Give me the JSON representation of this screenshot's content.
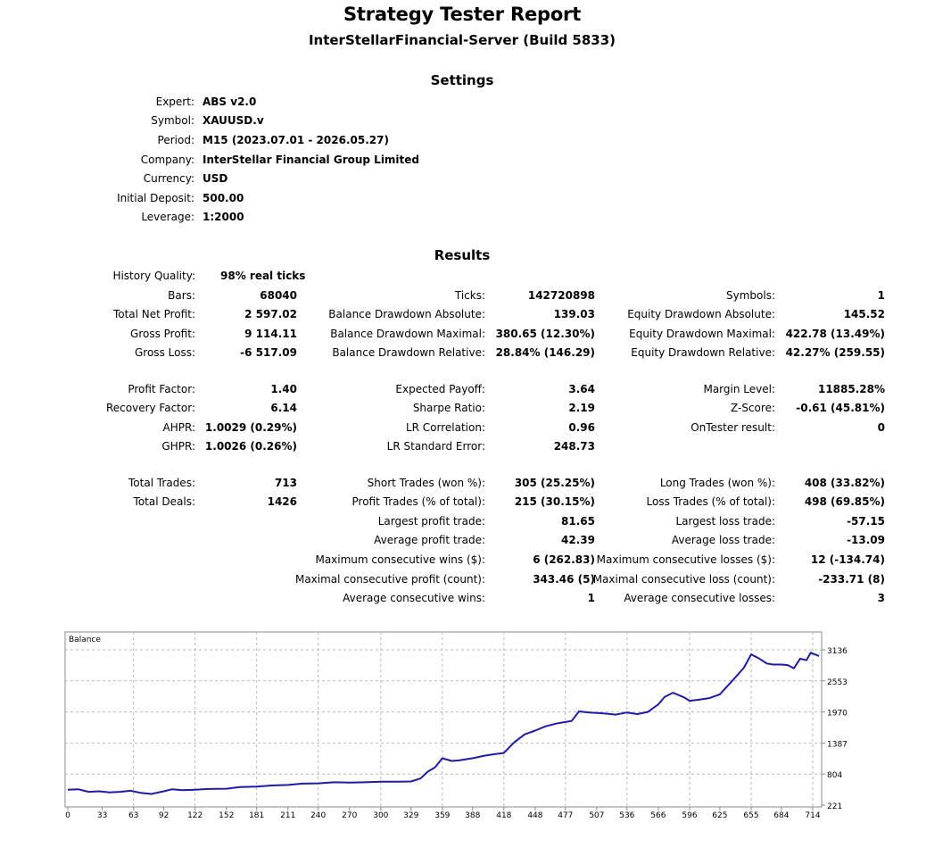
{
  "header": {
    "title": "Strategy Tester Report",
    "server": "InterStellarFinancial-Server (Build 5833)"
  },
  "settings": {
    "heading": "Settings",
    "rows": [
      {
        "label": "Expert:",
        "value": "ABS v2.0"
      },
      {
        "label": "Symbol:",
        "value": "XAUUSD.v"
      },
      {
        "label": "Period:",
        "value": "M15 (2023.07.01 - 2026.05.27)"
      },
      {
        "label": "Company:",
        "value": "InterStellar Financial Group Limited"
      },
      {
        "label": "Currency:",
        "value": "USD"
      },
      {
        "label": "Initial Deposit:",
        "value": "500.00"
      },
      {
        "label": "Leverage:",
        "value": "1:2000"
      }
    ]
  },
  "results": {
    "heading": "Results",
    "history_quality": {
      "label": "History Quality:",
      "value": "98% real ticks"
    },
    "rows": [
      [
        {
          "label": "Bars:",
          "value": "68040"
        },
        {
          "label": "Ticks:",
          "value": "142720898"
        },
        {
          "label": "Symbols:",
          "value": "1"
        }
      ],
      [
        {
          "label": "Total Net Profit:",
          "value": "2 597.02"
        },
        {
          "label": "Balance Drawdown Absolute:",
          "value": "139.03"
        },
        {
          "label": "Equity Drawdown Absolute:",
          "value": "145.52"
        }
      ],
      [
        {
          "label": "Gross Profit:",
          "value": "9 114.11"
        },
        {
          "label": "Balance Drawdown Maximal:",
          "value": "380.65 (12.30%)"
        },
        {
          "label": "Equity Drawdown Maximal:",
          "value": "422.78 (13.49%)"
        }
      ],
      [
        {
          "label": "Gross Loss:",
          "value": "-6 517.09"
        },
        {
          "label": "Balance Drawdown Relative:",
          "value": "28.84% (146.29)"
        },
        {
          "label": "Equity Drawdown Relative:",
          "value": "42.27% (259.55)"
        }
      ],
      [
        {
          "label": "Profit Factor:",
          "value": "1.40"
        },
        {
          "label": "Expected Payoff:",
          "value": "3.64"
        },
        {
          "label": "Margin Level:",
          "value": "11885.28%"
        }
      ],
      [
        {
          "label": "Recovery Factor:",
          "value": "6.14"
        },
        {
          "label": "Sharpe Ratio:",
          "value": "2.19"
        },
        {
          "label": "Z-Score:",
          "value": "-0.61 (45.81%)"
        }
      ],
      [
        {
          "label": "AHPR:",
          "value": "1.0029 (0.29%)"
        },
        {
          "label": "LR Correlation:",
          "value": "0.96"
        },
        {
          "label": "OnTester result:",
          "value": "0"
        }
      ],
      [
        {
          "label": "GHPR:",
          "value": "1.0026 (0.26%)"
        },
        {
          "label": "LR Standard Error:",
          "value": "248.73"
        },
        null
      ],
      [
        {
          "label": "Total Trades:",
          "value": "713"
        },
        {
          "label": "Short Trades (won %):",
          "value": "305 (25.25%)"
        },
        {
          "label": "Long Trades (won %):",
          "value": "408 (33.82%)"
        }
      ],
      [
        {
          "label": "Total Deals:",
          "value": "1426"
        },
        {
          "label": "Profit Trades (% of total):",
          "value": "215 (30.15%)"
        },
        {
          "label": "Loss Trades (% of total):",
          "value": "498 (69.85%)"
        }
      ],
      [
        null,
        {
          "label": "Largest profit trade:",
          "value": "81.65"
        },
        {
          "label": "Largest loss trade:",
          "value": "-57.15"
        }
      ],
      [
        null,
        {
          "label": "Average profit trade:",
          "value": "42.39"
        },
        {
          "label": "Average loss trade:",
          "value": "-13.09"
        }
      ],
      [
        null,
        {
          "label": "Maximum consecutive wins ($):",
          "value": "6 (262.83)"
        },
        {
          "label": "Maximum consecutive losses ($):",
          "value": "12 (-134.74)"
        }
      ],
      [
        null,
        {
          "label": "Maximal consecutive profit (count):",
          "value": "343.46 (5)"
        },
        {
          "label": "Maximal consecutive loss (count):",
          "value": "-233.71 (8)"
        }
      ],
      [
        null,
        {
          "label": "Average consecutive wins:",
          "value": "1"
        },
        {
          "label": "Average consecutive losses:",
          "value": "3"
        }
      ]
    ]
  },
  "chart_data": {
    "type": "line",
    "title": "Balance",
    "xlabel": "",
    "ylabel": "",
    "x_ticks": [
      "0",
      "33",
      "63",
      "92",
      "122",
      "152",
      "181",
      "211",
      "240",
      "270",
      "300",
      "329",
      "359",
      "388",
      "418",
      "448",
      "477",
      "507",
      "536",
      "566",
      "596",
      "625",
      "655",
      "684",
      "714"
    ],
    "y_ticks": [
      "221",
      "804",
      "1387",
      "1970",
      "2553",
      "3136"
    ],
    "xlim": [
      0,
      720
    ],
    "ylim": [
      221,
      3136
    ],
    "grid": true,
    "line_color": "#1c1ca8",
    "series": [
      {
        "x": [
          0,
          10,
          20,
          30,
          40,
          50,
          60,
          70,
          80,
          92,
          100,
          110,
          122,
          135,
          152,
          165,
          181,
          195,
          211,
          225,
          240,
          255,
          270,
          285,
          300,
          315,
          329,
          338,
          345,
          352,
          359,
          368,
          375,
          388,
          400,
          410,
          418,
          428,
          438,
          448,
          458,
          468,
          477,
          483,
          490,
          500,
          507,
          515,
          525,
          536,
          546,
          556,
          566,
          572,
          580,
          590,
          596,
          605,
          615,
          625,
          632,
          640,
          648,
          655,
          662,
          670,
          676,
          684,
          690,
          696,
          702,
          708,
          712,
          716,
          720
        ],
        "values": [
          510,
          520,
          470,
          480,
          460,
          470,
          490,
          450,
          430,
          480,
          520,
          500,
          510,
          525,
          530,
          560,
          570,
          590,
          600,
          625,
          630,
          650,
          645,
          650,
          660,
          660,
          665,
          720,
          850,
          930,
          1100,
          1050,
          1060,
          1100,
          1150,
          1180,
          1200,
          1400,
          1550,
          1620,
          1700,
          1750,
          1780,
          1800,
          1980,
          1960,
          1950,
          1940,
          1920,
          1960,
          1930,
          1970,
          2110,
          2250,
          2330,
          2250,
          2180,
          2200,
          2230,
          2300,
          2450,
          2620,
          2800,
          3050,
          2980,
          2880,
          2860,
          2860,
          2850,
          2790,
          2970,
          2940,
          3080,
          3050,
          3020
        ]
      }
    ]
  }
}
